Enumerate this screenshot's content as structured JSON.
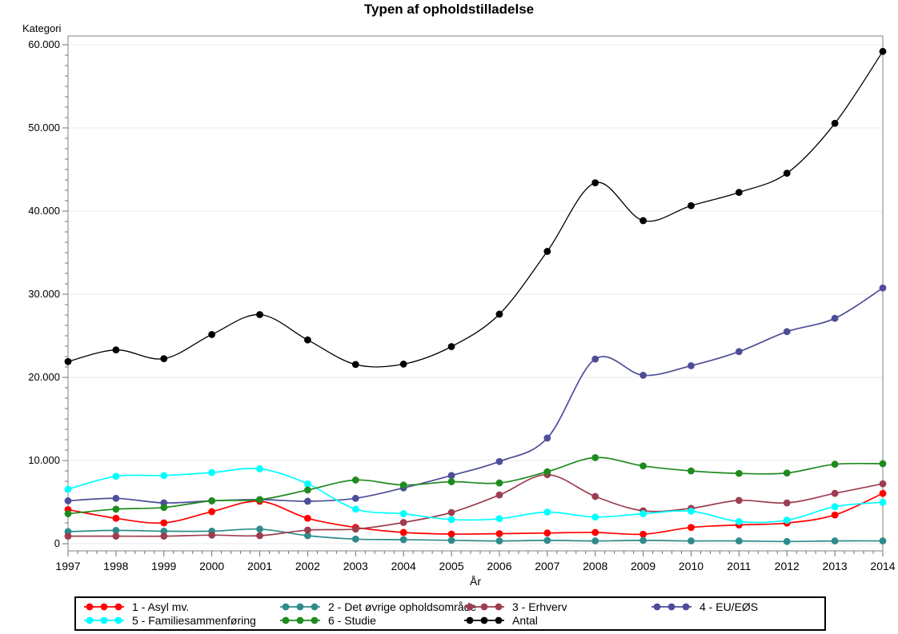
{
  "title": "Typen af opholdstilladelse",
  "chart_data": {
    "type": "line",
    "title": "Typen af opholdstilladelse",
    "xlabel": "År",
    "ylabel": "Kategori",
    "x": [
      1997,
      1998,
      1999,
      2000,
      2001,
      2002,
      2003,
      2004,
      2005,
      2006,
      2007,
      2008,
      2009,
      2010,
      2011,
      2012,
      2013,
      2014
    ],
    "ylim": [
      0,
      60000
    ],
    "ytick_interval": 10000,
    "ytick_labels": [
      "0",
      "10.000",
      "20.000",
      "30.000",
      "40.000",
      "50.000",
      "60.000"
    ],
    "y_minor_step": 1250,
    "x_minor_per_interval": 4,
    "grid": true,
    "legend_position": "bottom",
    "series": [
      {
        "name": "1 - Asyl mv.",
        "color": "#FF0000",
        "values": [
          4100,
          3050,
          2500,
          3850,
          5100,
          3050,
          1950,
          1350,
          1150,
          1200,
          1280,
          1350,
          1130,
          1950,
          2250,
          2480,
          3450,
          6050
        ]
      },
      {
        "name": "2 - Det øvrige opholdsområde",
        "color": "#2E8B8B",
        "values": [
          1450,
          1600,
          1500,
          1500,
          1750,
          960,
          550,
          480,
          400,
          330,
          390,
          330,
          390,
          330,
          330,
          260,
          330,
          330
        ]
      },
      {
        "name": "3 - Erhverv",
        "color": "#9E3D50",
        "values": [
          900,
          900,
          900,
          1030,
          960,
          1630,
          1750,
          2550,
          3750,
          5850,
          8300,
          5680,
          3950,
          4250,
          5200,
          4900,
          6050,
          7200
        ]
      },
      {
        "name": "4 - EU/EØS",
        "color": "#4D4D99",
        "values": [
          5150,
          5450,
          4900,
          5150,
          5300,
          5100,
          5450,
          6700,
          8200,
          9880,
          12700,
          22200,
          20250,
          21400,
          23100,
          25500,
          27100,
          30750
        ]
      },
      {
        "name": "5 - Familiesammenføring",
        "color": "#00FFFF",
        "values": [
          6550,
          8100,
          8200,
          8550,
          9000,
          7200,
          4150,
          3600,
          2900,
          3000,
          3800,
          3200,
          3600,
          3900,
          2650,
          2820,
          4450,
          4980
        ]
      },
      {
        "name": "6 - Studie",
        "color": "#1F8A1F",
        "values": [
          3600,
          4150,
          4350,
          5150,
          5290,
          6450,
          7650,
          7050,
          7450,
          7300,
          8650,
          10350,
          9350,
          8750,
          8450,
          8500,
          9550,
          9620
        ]
      },
      {
        "name": "Antal",
        "color": "#000000",
        "values": [
          21900,
          23300,
          22250,
          25150,
          27550,
          24500,
          21550,
          21600,
          23700,
          27600,
          35150,
          43400,
          38850,
          40650,
          42250,
          44550,
          50550,
          59200
        ]
      }
    ],
    "legend_rows": [
      [
        0,
        1,
        2,
        3
      ],
      [
        4,
        5,
        6
      ]
    ]
  },
  "colors": {
    "grid": "#E8E8E8",
    "frame": "#808080",
    "tick": "#707070",
    "text": "#000000",
    "background": "#FFFFFF"
  }
}
